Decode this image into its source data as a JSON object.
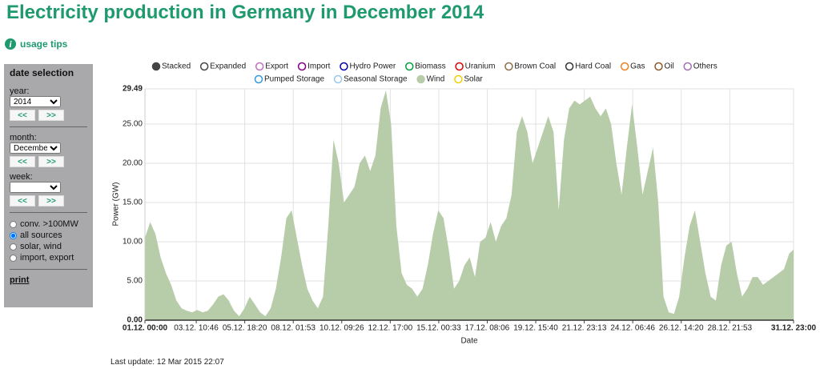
{
  "header": {
    "title": "Electricity production in Germany in December 2014",
    "usage_tips": "usage tips"
  },
  "sidebar": {
    "title": "date selection",
    "year": {
      "label": "year:",
      "value": "2014",
      "prev": "<<",
      "next": ">>"
    },
    "month": {
      "label": "month:",
      "value": "December",
      "prev": "<<",
      "next": ">>"
    },
    "week": {
      "label": "week:",
      "prev": "<<",
      "next": ">>"
    },
    "filters": [
      {
        "label": "conv. >100MW",
        "checked": false
      },
      {
        "label": "all sources",
        "checked": true
      },
      {
        "label": "solar, wind",
        "checked": false
      },
      {
        "label": "import, export",
        "checked": false
      }
    ],
    "print": "print"
  },
  "footer": {
    "last_update": "Last update: 12 Mar 2015 22:07"
  },
  "chart_data": {
    "type": "area",
    "x_label": "Date",
    "y_label": "Power (GW)",
    "display_modes": [
      {
        "label": "Stacked",
        "selected": true
      },
      {
        "label": "Expanded",
        "selected": false
      }
    ],
    "xlim": [
      "01.12. 00:00",
      "31.12. 23:00"
    ],
    "xticks": [
      "01.12. 00:00",
      "03.12. 10:46",
      "05.12. 18:20",
      "08.12. 01:53",
      "10.12. 09:26",
      "12.12. 17:00",
      "15.12. 00:33",
      "17.12. 08:06",
      "19.12. 15:40",
      "21.12. 23:13",
      "24.12. 06:46",
      "26.12. 14:20",
      "28.12. 21:53",
      "31.12. 23:00"
    ],
    "ylim": [
      0,
      29.49
    ],
    "yticks": [
      {
        "value": 0,
        "label": "0.00"
      },
      {
        "value": 5,
        "label": "5.00"
      },
      {
        "value": 10,
        "label": "10.00"
      },
      {
        "value": 15,
        "label": "15.00"
      },
      {
        "value": 20,
        "label": "20.00"
      },
      {
        "value": 25,
        "label": "25.00"
      },
      {
        "value": 29.49,
        "label": "29.49"
      }
    ],
    "grid": true,
    "x": [
      "01.12. 00:00",
      "01.12. 06:00",
      "01.12. 12:00",
      "01.12. 18:00",
      "02.12. 00:00",
      "02.12. 06:00",
      "02.12. 12:00",
      "02.12. 18:00",
      "03.12. 00:00",
      "03.12. 06:00",
      "03.12. 12:00",
      "03.12. 18:00",
      "04.12. 00:00",
      "04.12. 06:00",
      "04.12. 12:00",
      "04.12. 18:00",
      "05.12. 00:00",
      "05.12. 06:00",
      "05.12. 12:00",
      "05.12. 18:00",
      "06.12. 00:00",
      "06.12. 06:00",
      "06.12. 12:00",
      "06.12. 18:00",
      "07.12. 00:00",
      "07.12. 06:00",
      "07.12. 12:00",
      "07.12. 18:00",
      "08.12. 00:00",
      "08.12. 06:00",
      "08.12. 12:00",
      "08.12. 18:00",
      "09.12. 00:00",
      "09.12. 06:00",
      "09.12. 12:00",
      "09.12. 18:00",
      "10.12. 00:00",
      "10.12. 06:00",
      "10.12. 12:00",
      "10.12. 18:00",
      "11.12. 00:00",
      "11.12. 06:00",
      "11.12. 12:00",
      "11.12. 18:00",
      "12.12. 00:00",
      "12.12. 06:00",
      "12.12. 12:00",
      "12.12. 18:00",
      "13.12. 00:00",
      "13.12. 06:00",
      "13.12. 12:00",
      "13.12. 18:00",
      "14.12. 00:00",
      "14.12. 06:00",
      "14.12. 12:00",
      "14.12. 18:00",
      "15.12. 00:00",
      "15.12. 06:00",
      "15.12. 12:00",
      "15.12. 18:00",
      "16.12. 00:00",
      "16.12. 06:00",
      "16.12. 12:00",
      "16.12. 18:00",
      "17.12. 00:00",
      "17.12. 06:00",
      "17.12. 12:00",
      "17.12. 18:00",
      "18.12. 00:00",
      "18.12. 06:00",
      "18.12. 12:00",
      "18.12. 18:00",
      "19.12. 00:00",
      "19.12. 06:00",
      "19.12. 12:00",
      "19.12. 18:00",
      "20.12. 00:00",
      "20.12. 06:00",
      "20.12. 12:00",
      "20.12. 18:00",
      "21.12. 00:00",
      "21.12. 06:00",
      "21.12. 12:00",
      "21.12. 18:00",
      "22.12. 00:00",
      "22.12. 06:00",
      "22.12. 12:00",
      "22.12. 18:00",
      "23.12. 00:00",
      "23.12. 06:00",
      "23.12. 12:00",
      "23.12. 18:00",
      "24.12. 00:00",
      "24.12. 06:00",
      "24.12. 12:00",
      "24.12. 18:00",
      "25.12. 00:00",
      "25.12. 06:00",
      "25.12. 12:00",
      "25.12. 18:00",
      "26.12. 00:00",
      "26.12. 06:00",
      "26.12. 12:00",
      "26.12. 18:00",
      "27.12. 00:00",
      "27.12. 06:00",
      "27.12. 12:00",
      "27.12. 18:00",
      "28.12. 00:00",
      "28.12. 06:00",
      "28.12. 12:00",
      "28.12. 18:00",
      "29.12. 00:00",
      "29.12. 06:00",
      "29.12. 12:00",
      "29.12. 18:00",
      "30.12. 00:00",
      "30.12. 06:00",
      "30.12. 12:00",
      "30.12. 18:00",
      "31.12. 00:00",
      "31.12. 06:00",
      "31.12. 12:00",
      "31.12. 18:00",
      "31.12. 23:00"
    ],
    "series": [
      {
        "name": "Export",
        "color": "#c070c0"
      },
      {
        "name": "Import",
        "color": "#800080"
      },
      {
        "name": "Hydro Power",
        "color": "#0000b0"
      },
      {
        "name": "Biomass",
        "color": "#00a040"
      },
      {
        "name": "Uranium",
        "color": "#e00000"
      },
      {
        "name": "Brown Coal",
        "color": "#8b6d4b"
      },
      {
        "name": "Hard Coal",
        "color": "#333333"
      },
      {
        "name": "Gas",
        "color": "#f08020"
      },
      {
        "name": "Oil",
        "color": "#8b5a2b"
      },
      {
        "name": "Others",
        "color": "#a070b0"
      },
      {
        "name": "Pumped Storage",
        "color": "#3399dd"
      },
      {
        "name": "Seasonal Storage",
        "color": "#99c8ee"
      },
      {
        "name": "Wind",
        "color": "#b7cca9",
        "visible": true,
        "values": [
          10.5,
          12.5,
          11,
          8,
          6,
          4.5,
          2.5,
          1.5,
          1.2,
          1.0,
          1.3,
          1.0,
          1.2,
          2,
          3,
          3.3,
          2.5,
          1.2,
          0.5,
          1.5,
          3,
          2,
          1,
          0.5,
          1.5,
          4,
          8,
          13,
          14,
          10.5,
          7,
          4,
          2.5,
          1.5,
          3,
          12,
          23,
          20,
          15,
          16,
          17,
          20,
          21,
          19,
          21,
          27,
          29.3,
          25,
          12,
          6,
          4.5,
          4,
          3,
          4,
          7,
          11,
          14,
          13,
          9,
          4,
          5,
          7,
          8,
          5.5,
          10,
          10.5,
          12.5,
          10,
          12,
          13,
          16,
          24,
          26,
          24,
          20,
          22,
          24,
          26,
          24,
          14,
          23,
          27,
          28,
          27.5,
          28,
          28.5,
          27,
          26,
          27,
          25,
          20,
          16,
          22,
          27.5,
          22,
          16,
          19,
          22,
          15,
          3,
          1,
          0.8,
          3,
          8,
          12,
          14,
          10,
          6,
          3,
          2.5,
          7,
          9.5,
          10,
          6,
          3,
          4,
          5.5,
          5.5,
          4.5,
          5,
          5.5,
          6,
          6.5,
          8.5,
          9
        ]
      },
      {
        "name": "Solar",
        "color": "#f0d000"
      }
    ]
  }
}
